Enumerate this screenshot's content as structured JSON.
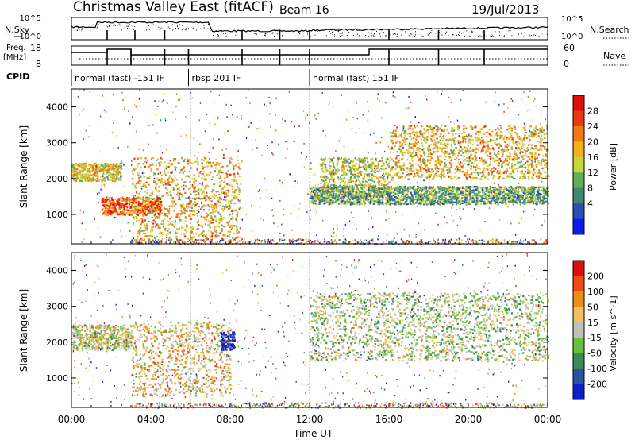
{
  "header": {
    "station": "Christmas Valley East (fitACF)",
    "beam": "Beam 16",
    "date": "19/Jul/2013"
  },
  "status_panels": {
    "nsky_label": "N.Sky",
    "nsearch_label": "N.Search",
    "noise_ticks": [
      "10^5",
      "10^0"
    ],
    "freq_label": "Freq.",
    "freq_unit": "[MHz]",
    "freq_ticks": [
      "18",
      "8"
    ],
    "nave_label": "Nave",
    "nave_ticks": [
      "60",
      "0"
    ],
    "cpid_label": "CPID",
    "cpid_segments": [
      {
        "label": "normal (fast) -151 IF",
        "start_hour": 0.0,
        "end_hour": 5.9
      },
      {
        "label": "rbsp 201 IF",
        "start_hour": 5.9,
        "end_hour": 12.0
      },
      {
        "label": "normal (fast) 151 IF",
        "start_hour": 12.0,
        "end_hour": 24.0
      }
    ]
  },
  "chart_data": [
    {
      "type": "heatmap",
      "title": "",
      "xlabel": "",
      "ylabel": "Slant Range [km]",
      "xlim": [
        0,
        24
      ],
      "ylim": [
        180,
        4500
      ],
      "y_ticks": [
        1000,
        2000,
        3000,
        4000
      ],
      "colorbar": {
        "label": "Power [dB]",
        "ticks": [
          "4",
          "8",
          "12",
          "16",
          "20",
          "24",
          "28"
        ],
        "colors": [
          "#0a1cf0",
          "#2b4fb4",
          "#3f8a6f",
          "#5fae5a",
          "#c8d63a",
          "#f2b21a",
          "#f07a10",
          "#e63a10",
          "#e30c0c"
        ]
      },
      "bands": [
        {
          "start_hour": 0.0,
          "end_hour": 2.5,
          "range_km": [
            1950,
            2450
          ],
          "level": 0.55
        },
        {
          "start_hour": 1.5,
          "end_hour": 4.5,
          "range_km": [
            1000,
            1500
          ],
          "level": 0.8
        },
        {
          "start_hour": 3.0,
          "end_hour": 8.5,
          "range_km": [
            300,
            2600
          ],
          "level": 0.6
        },
        {
          "start_hour": 12.5,
          "end_hour": 16.0,
          "range_km": [
            1500,
            2600
          ],
          "level": 0.5
        },
        {
          "start_hour": 16.0,
          "end_hour": 24.0,
          "range_km": [
            2000,
            3500
          ],
          "level": 0.6
        },
        {
          "start_hour": 12.0,
          "end_hour": 24.0,
          "range_km": [
            1300,
            1800
          ],
          "level": 0.35
        }
      ]
    },
    {
      "type": "heatmap",
      "title": "",
      "xlabel": "Time UT",
      "ylabel": "Slant Range [km]",
      "xlim": [
        0,
        24
      ],
      "ylim": [
        180,
        4500
      ],
      "y_ticks": [
        1000,
        2000,
        3000,
        4000
      ],
      "x_ticks": [
        "00:00",
        "04:00",
        "08:00",
        "12:00",
        "16:00",
        "20:00",
        "00:00"
      ],
      "colorbar": {
        "label": "Velocity [m s^-1]",
        "ticks": [
          "200",
          "100",
          "50",
          "15",
          "-15",
          "-50",
          "-100",
          "-200"
        ],
        "colors": [
          "#1020c8",
          "#2a52a0",
          "#3a8a5a",
          "#66c23a",
          "#c0c0b8",
          "#f0c060",
          "#f08c18",
          "#f04a10",
          "#e00c0c"
        ]
      },
      "bands": [
        {
          "start_hour": 0.0,
          "end_hour": 3.0,
          "range_km": [
            1800,
            2500
          ],
          "level": 0.5
        },
        {
          "start_hour": 3.0,
          "end_hour": 8.0,
          "range_km": [
            500,
            2600
          ],
          "level": 0.6
        },
        {
          "start_hour": 7.5,
          "end_hour": 8.2,
          "range_km": [
            1800,
            2300
          ],
          "level": 0.0
        },
        {
          "start_hour": 12.0,
          "end_hour": 24.0,
          "range_km": [
            1500,
            3400
          ],
          "level": 0.45
        }
      ]
    }
  ]
}
